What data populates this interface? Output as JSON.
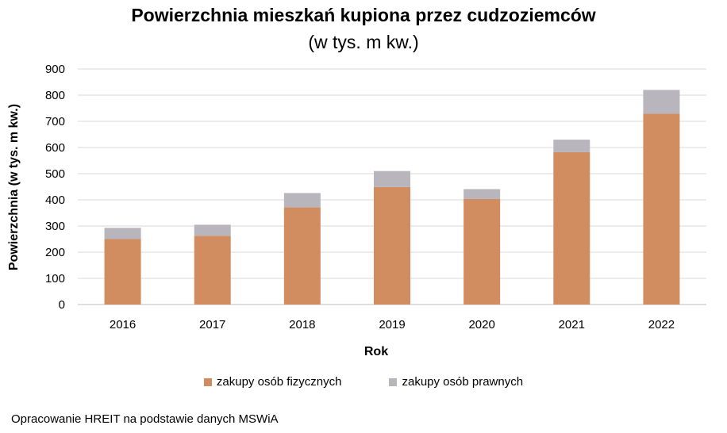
{
  "chart_data": {
    "type": "bar",
    "stacked": true,
    "title": "Powierzchnia mieszkań kupiona przez cudzoziemców",
    "subtitle": "(w tys. m kw.)",
    "xlabel": "Rok",
    "ylabel": "Powierzchnia (w tys. m kw.)",
    "categories": [
      "2016",
      "2017",
      "2018",
      "2019",
      "2020",
      "2021",
      "2022"
    ],
    "ylim": [
      0,
      900
    ],
    "yticks": [
      0,
      100,
      200,
      300,
      400,
      500,
      600,
      700,
      800,
      900
    ],
    "grid": true,
    "legend_position": "bottom",
    "series": [
      {
        "name": "zakupy osób fizycznych",
        "color": "#d18d5f",
        "values": [
          250,
          263,
          371,
          449,
          403,
          582,
          729
        ]
      },
      {
        "name": "zakupy osób prawnych",
        "color": "#b8b5bd",
        "values": [
          43,
          42,
          55,
          61,
          38,
          48,
          91
        ]
      }
    ]
  },
  "source_note": "Opracowanie HREIT na podstawie danych MSWiA"
}
